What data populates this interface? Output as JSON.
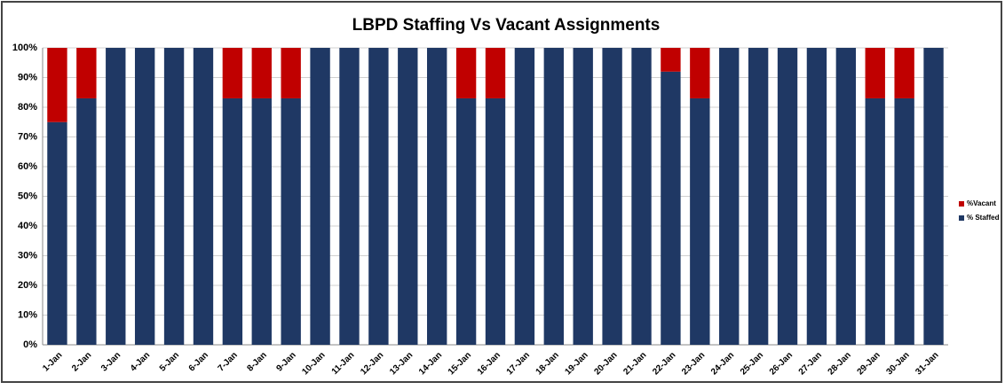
{
  "chart_data": {
    "type": "stacked_bar",
    "title": "LBPD Staffing Vs Vacant Assignments",
    "categories": [
      "1-Jan",
      "2-Jan",
      "3-Jan",
      "4-Jan",
      "5-Jan",
      "6-Jan",
      "7-Jan",
      "8-Jan",
      "9-Jan",
      "10-Jan",
      "11-Jan",
      "12-Jan",
      "13-Jan",
      "14-Jan",
      "15-Jan",
      "16-Jan",
      "17-Jan",
      "18-Jan",
      "19-Jan",
      "20-Jan",
      "21-Jan",
      "22-Jan",
      "23-Jan",
      "24-Jan",
      "25-Jan",
      "26-Jan",
      "27-Jan",
      "28-Jan",
      "29-Jan",
      "30-Jan",
      "31-Jan"
    ],
    "series": [
      {
        "name": "% Staffed",
        "color": "#1f3864",
        "values": [
          75,
          83,
          100,
          100,
          100,
          100,
          83,
          83,
          83,
          100,
          100,
          100,
          100,
          100,
          83,
          83,
          100,
          100,
          100,
          100,
          100,
          92,
          83,
          100,
          100,
          100,
          100,
          100,
          83,
          83,
          100
        ]
      },
      {
        "name": "%Vacant",
        "color": "#c00000",
        "values": [
          25,
          17,
          0,
          0,
          0,
          0,
          17,
          17,
          17,
          0,
          0,
          0,
          0,
          0,
          17,
          17,
          0,
          0,
          0,
          0,
          0,
          8,
          17,
          0,
          0,
          0,
          0,
          0,
          17,
          17,
          0
        ]
      }
    ],
    "ylim": [
      0,
      100
    ],
    "yticks": [
      {
        "value": 0,
        "label": "0%"
      },
      {
        "value": 10,
        "label": "10%"
      },
      {
        "value": 20,
        "label": "20%"
      },
      {
        "value": 30,
        "label": "30%"
      },
      {
        "value": 40,
        "label": "40%"
      },
      {
        "value": 50,
        "label": "50%"
      },
      {
        "value": 60,
        "label": "60%"
      },
      {
        "value": 70,
        "label": "70%"
      },
      {
        "value": 80,
        "label": "80%"
      },
      {
        "value": 90,
        "label": "90%"
      },
      {
        "value": 100,
        "label": "100%"
      }
    ],
    "grid": true,
    "legend": "right"
  }
}
